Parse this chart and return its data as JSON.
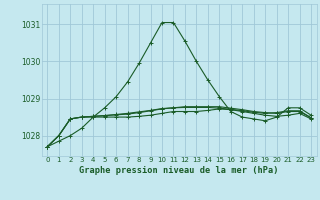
{
  "xlabel": "Graphe pression niveau de la mer (hPa)",
  "xlim": [
    -0.5,
    23.5
  ],
  "ylim": [
    1027.45,
    1031.55
  ],
  "yticks": [
    1028,
    1029,
    1030,
    1031
  ],
  "xticks": [
    0,
    1,
    2,
    3,
    4,
    5,
    6,
    7,
    8,
    9,
    10,
    11,
    12,
    13,
    14,
    15,
    16,
    17,
    18,
    19,
    20,
    21,
    22,
    23
  ],
  "background_color": "#c5e8ef",
  "grid_color": "#a0c8d8",
  "line_color": "#1a5c28",
  "series1": [
    1027.7,
    1027.85,
    1028.0,
    1028.2,
    1028.5,
    1028.75,
    1029.05,
    1029.45,
    1029.95,
    1030.5,
    1031.05,
    1031.05,
    1030.55,
    1030.0,
    1029.5,
    1029.05,
    1028.65,
    1028.5,
    1028.45,
    1028.4,
    1028.5,
    1028.75,
    1028.75,
    1028.55
  ],
  "series2": [
    1027.7,
    1028.0,
    1028.45,
    1028.5,
    1028.5,
    1028.5,
    1028.5,
    1028.5,
    1028.52,
    1028.55,
    1028.6,
    1028.65,
    1028.65,
    1028.65,
    1028.68,
    1028.72,
    1028.7,
    1028.65,
    1028.6,
    1028.55,
    1028.52,
    1028.55,
    1028.6,
    1028.45
  ],
  "series3": [
    1027.7,
    1028.0,
    1028.45,
    1028.5,
    1028.52,
    1028.54,
    1028.56,
    1028.58,
    1028.62,
    1028.67,
    1028.72,
    1028.75,
    1028.78,
    1028.78,
    1028.78,
    1028.78,
    1028.74,
    1028.7,
    1028.65,
    1028.62,
    1028.6,
    1028.65,
    1028.65,
    1028.48
  ],
  "series4": [
    1027.7,
    1028.0,
    1028.45,
    1028.5,
    1028.52,
    1028.54,
    1028.57,
    1028.6,
    1028.64,
    1028.68,
    1028.73,
    1028.75,
    1028.76,
    1028.76,
    1028.76,
    1028.74,
    1028.71,
    1028.67,
    1028.63,
    1028.6,
    1028.62,
    1028.67,
    1028.67,
    1028.48
  ]
}
